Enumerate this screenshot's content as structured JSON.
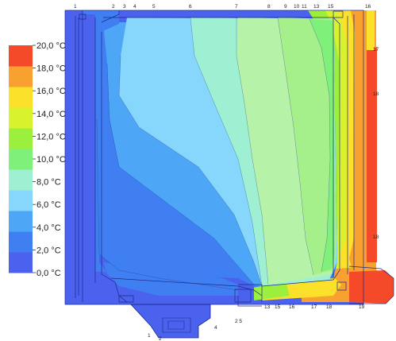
{
  "legend": {
    "bands": [
      {
        "color": "#4a62ee"
      },
      {
        "color": "#3f7ff2"
      },
      {
        "color": "#4ea7f6"
      },
      {
        "color": "#86d7fb"
      },
      {
        "color": "#9ff0d2"
      },
      {
        "color": "#7ff07a"
      },
      {
        "color": "#9bf03d"
      },
      {
        "color": "#d8f22e"
      },
      {
        "color": "#fbe12a"
      },
      {
        "color": "#f8a030"
      },
      {
        "color": "#f44a2a"
      }
    ],
    "ticks": [
      {
        "label": "20,0 °C"
      },
      {
        "label": "18,0 °C"
      },
      {
        "label": "16,0 °C"
      },
      {
        "label": "14,0 °C"
      },
      {
        "label": "12,0 °C"
      },
      {
        "label": "10,0 °C"
      },
      {
        "label": "8,0 °C"
      },
      {
        "label": "6,0 °C"
      },
      {
        "label": "4,0 °C"
      },
      {
        "label": "2,0 °C"
      },
      {
        "label": "0,0 °C"
      }
    ]
  },
  "markers_top": [
    "1",
    "2",
    "3",
    "4",
    "5",
    "6",
    "7",
    "8",
    "9",
    "10",
    "11",
    "13",
    "15",
    "16"
  ],
  "markers_right": [
    "17",
    "18",
    "18"
  ],
  "markers_bottom": [
    "13",
    "15",
    "16",
    "17",
    "18",
    "19"
  ],
  "markers_lower": [
    "1",
    "2",
    "4"
  ],
  "inner_note": "2 5",
  "colors": {
    "outline": "#1d2a8a",
    "cold": "#4a62ee",
    "warm": "#f44a2a"
  }
}
